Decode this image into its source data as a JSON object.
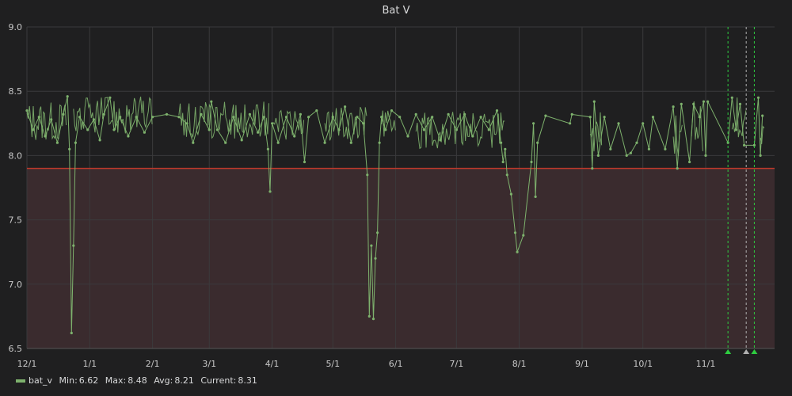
{
  "chart_data": {
    "type": "line",
    "title": "Bat V",
    "xlabel": "",
    "ylabel": "",
    "ylim": [
      6.5,
      9.0
    ],
    "x_range": [
      "2018-12-01",
      "2019-12-05"
    ],
    "grid": true,
    "legend_position": "bottom-left",
    "y_ticks": [
      "6.5",
      "7.0",
      "7.5",
      "8.0",
      "8.5",
      "9.0"
    ],
    "x_ticks": [
      {
        "date": "2018-12-01",
        "label": "12/1"
      },
      {
        "date": "2019-01-01",
        "label": "1/1"
      },
      {
        "date": "2019-02-01",
        "label": "2/1"
      },
      {
        "date": "2019-03-01",
        "label": "3/1"
      },
      {
        "date": "2019-04-01",
        "label": "4/1"
      },
      {
        "date": "2019-05-01",
        "label": "5/1"
      },
      {
        "date": "2019-06-01",
        "label": "6/1"
      },
      {
        "date": "2019-07-01",
        "label": "7/1"
      },
      {
        "date": "2019-08-01",
        "label": "8/1"
      },
      {
        "date": "2019-09-01",
        "label": "9/1"
      },
      {
        "date": "2019-10-01",
        "label": "10/1"
      },
      {
        "date": "2019-11-01",
        "label": "11/1"
      }
    ],
    "threshold": {
      "value": 7.9,
      "fill": "below",
      "line_color": "#c0392b",
      "fill_color": "#3a2b2e"
    },
    "series": [
      {
        "name": "bat_v",
        "color": "#7eb26d",
        "points": [
          [
            "2018-12-01",
            8.35
          ],
          [
            "2018-12-04",
            8.2
          ],
          [
            "2018-12-07",
            8.3
          ],
          [
            "2018-12-10",
            8.15
          ],
          [
            "2018-12-13",
            8.28
          ],
          [
            "2018-12-16",
            8.1
          ],
          [
            "2018-12-19",
            8.32
          ],
          [
            "2018-12-21",
            8.46
          ],
          [
            "2018-12-22",
            8.05
          ],
          [
            "2018-12-23",
            6.62
          ],
          [
            "2018-12-24",
            7.3
          ],
          [
            "2018-12-25",
            8.1
          ],
          [
            "2018-12-27",
            8.3
          ],
          [
            "2018-12-31",
            8.2
          ],
          [
            "2019-01-03",
            8.28
          ],
          [
            "2019-01-06",
            8.12
          ],
          [
            "2019-01-08",
            8.32
          ],
          [
            "2019-01-11",
            8.45
          ],
          [
            "2019-01-13",
            8.2
          ],
          [
            "2019-01-16",
            8.3
          ],
          [
            "2019-01-20",
            8.15
          ],
          [
            "2019-01-24",
            8.3
          ],
          [
            "2019-01-28",
            8.18
          ],
          [
            "2019-02-01",
            8.3
          ],
          [
            "2019-02-08",
            8.32
          ],
          [
            "2019-02-14",
            8.3
          ],
          [
            "2019-02-18",
            8.25
          ],
          [
            "2019-02-21",
            8.1
          ],
          [
            "2019-02-25",
            8.32
          ],
          [
            "2019-03-01",
            8.2
          ],
          [
            "2019-03-02",
            8.42
          ],
          [
            "2019-03-05",
            8.2
          ],
          [
            "2019-03-09",
            8.1
          ],
          [
            "2019-03-13",
            8.3
          ],
          [
            "2019-03-17",
            8.12
          ],
          [
            "2019-03-21",
            8.32
          ],
          [
            "2019-03-25",
            8.18
          ],
          [
            "2019-03-28",
            8.3
          ],
          [
            "2019-03-30",
            8.05
          ],
          [
            "2019-03-31",
            7.72
          ],
          [
            "2019-04-01",
            8.25
          ],
          [
            "2019-04-04",
            8.1
          ],
          [
            "2019-04-08",
            8.3
          ],
          [
            "2019-04-12",
            8.15
          ],
          [
            "2019-04-15",
            8.32
          ],
          [
            "2019-04-17",
            7.95
          ],
          [
            "2019-04-19",
            8.3
          ],
          [
            "2019-04-23",
            8.35
          ],
          [
            "2019-04-27",
            8.1
          ],
          [
            "2019-05-01",
            8.3
          ],
          [
            "2019-05-04",
            8.2
          ],
          [
            "2019-05-07",
            8.38
          ],
          [
            "2019-05-10",
            8.1
          ],
          [
            "2019-05-13",
            8.3
          ],
          [
            "2019-05-16",
            8.25
          ],
          [
            "2019-05-18",
            7.85
          ],
          [
            "2019-05-19",
            6.75
          ],
          [
            "2019-05-20",
            7.3
          ],
          [
            "2019-05-21",
            6.73
          ],
          [
            "2019-05-22",
            7.2
          ],
          [
            "2019-05-23",
            7.4
          ],
          [
            "2019-05-24",
            8.1
          ],
          [
            "2019-05-25",
            8.3
          ],
          [
            "2019-05-27",
            8.2
          ],
          [
            "2019-05-30",
            8.35
          ],
          [
            "2019-06-03",
            8.3
          ],
          [
            "2019-06-07",
            8.15
          ],
          [
            "2019-06-11",
            8.32
          ],
          [
            "2019-06-15",
            8.2
          ],
          [
            "2019-06-19",
            8.3
          ],
          [
            "2019-06-23",
            8.12
          ],
          [
            "2019-06-27",
            8.32
          ],
          [
            "2019-07-01",
            8.2
          ],
          [
            "2019-07-05",
            8.32
          ],
          [
            "2019-07-09",
            8.15
          ],
          [
            "2019-07-13",
            8.3
          ],
          [
            "2019-07-17",
            8.2
          ],
          [
            "2019-07-21",
            8.35
          ],
          [
            "2019-07-23",
            8.1
          ],
          [
            "2019-07-24",
            7.95
          ],
          [
            "2019-07-25",
            8.05
          ],
          [
            "2019-07-26",
            7.85
          ],
          [
            "2019-07-28",
            7.7
          ],
          [
            "2019-07-30",
            7.4
          ],
          [
            "2019-07-31",
            7.25
          ],
          [
            "2019-08-03",
            7.38
          ],
          [
            "2019-08-07",
            7.95
          ],
          [
            "2019-08-08",
            8.25
          ],
          [
            "2019-08-09",
            7.68
          ],
          [
            "2019-08-10",
            8.1
          ],
          [
            "2019-08-14",
            8.31
          ],
          [
            "2019-08-26",
            8.25
          ],
          [
            "2019-08-27",
            8.32
          ],
          [
            "2019-09-05",
            8.3
          ],
          [
            "2019-09-06",
            7.9
          ],
          [
            "2019-09-07",
            8.42
          ],
          [
            "2019-09-09",
            8.0
          ],
          [
            "2019-09-12",
            8.3
          ],
          [
            "2019-09-15",
            8.05
          ],
          [
            "2019-09-19",
            8.25
          ],
          [
            "2019-09-23",
            8.0
          ],
          [
            "2019-09-25",
            8.02
          ],
          [
            "2019-09-28",
            8.1
          ],
          [
            "2019-10-01",
            8.25
          ],
          [
            "2019-10-04",
            8.05
          ],
          [
            "2019-10-06",
            8.3
          ],
          [
            "2019-10-12",
            8.05
          ],
          [
            "2019-10-16",
            8.38
          ],
          [
            "2019-10-18",
            7.9
          ],
          [
            "2019-10-20",
            8.4
          ],
          [
            "2019-10-24",
            7.95
          ],
          [
            "2019-10-26",
            8.4
          ],
          [
            "2019-10-29",
            8.3
          ],
          [
            "2019-10-31",
            8.42
          ],
          [
            "2019-11-01",
            8.0
          ],
          [
            "2019-11-02",
            8.42
          ],
          [
            "2019-11-12",
            8.1
          ],
          [
            "2019-11-14",
            8.45
          ],
          [
            "2019-11-16",
            8.2
          ],
          [
            "2019-11-18",
            8.4
          ],
          [
            "2019-11-20",
            8.08
          ],
          [
            "2019-11-25",
            8.08
          ],
          [
            "2019-11-27",
            8.45
          ],
          [
            "2019-11-28",
            8.0
          ],
          [
            "2019-11-29",
            8.31
          ]
        ]
      }
    ],
    "dense_bands": [
      {
        "start": "2018-12-01",
        "end": "2018-12-21",
        "low": 8.05,
        "high": 8.42
      },
      {
        "start": "2018-12-24",
        "end": "2019-02-01",
        "low": 8.1,
        "high": 8.46
      },
      {
        "start": "2019-02-14",
        "end": "2019-03-31",
        "low": 8.08,
        "high": 8.42
      },
      {
        "start": "2019-04-01",
        "end": "2019-04-17",
        "low": 8.05,
        "high": 8.35
      },
      {
        "start": "2019-04-27",
        "end": "2019-05-18",
        "low": 8.05,
        "high": 8.38
      },
      {
        "start": "2019-05-25",
        "end": "2019-06-01",
        "low": 8.1,
        "high": 8.35
      },
      {
        "start": "2019-06-11",
        "end": "2019-07-25",
        "low": 8.0,
        "high": 8.35
      },
      {
        "start": "2019-09-05",
        "end": "2019-09-11",
        "low": 7.92,
        "high": 8.42
      },
      {
        "start": "2019-10-16",
        "end": "2019-10-21",
        "low": 7.92,
        "high": 8.42
      },
      {
        "start": "2019-10-25",
        "end": "2019-10-31",
        "low": 7.95,
        "high": 8.43
      },
      {
        "start": "2019-11-14",
        "end": "2019-11-21",
        "low": 8.05,
        "high": 8.46
      },
      {
        "start": "2019-11-28",
        "end": "2019-11-30",
        "low": 7.98,
        "high": 8.45
      }
    ],
    "annotations": [
      {
        "date": "2019-11-12",
        "color": "#2ecc40"
      },
      {
        "date": "2019-11-21",
        "color": "#b0b0b0"
      },
      {
        "date": "2019-11-25",
        "color": "#2ecc40"
      }
    ]
  },
  "legend": {
    "series_name": "bat_v",
    "min_label": "Min:",
    "min_value": "6.62",
    "max_label": "Max:",
    "max_value": "8.48",
    "avg_label": "Avg:",
    "avg_value": "8.21",
    "current_label": "Current:",
    "current_value": "8.31"
  }
}
